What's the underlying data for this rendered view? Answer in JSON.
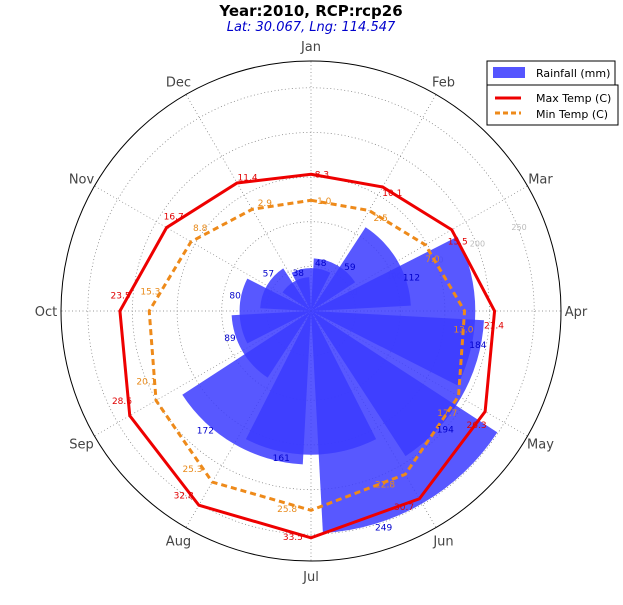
{
  "chart_data": {
    "type": "polar-bar-line",
    "title": "Year:2010, RCP:rcp26",
    "subtitle": "Lat: 30.067, Lng: 114.547",
    "months": [
      "Jan",
      "Feb",
      "Mar",
      "Apr",
      "May",
      "Jun",
      "Jul",
      "Aug",
      "Sep",
      "Oct",
      "Nov",
      "Dec"
    ],
    "radial_ticks": [
      "50",
      "100",
      "150",
      "200",
      "250"
    ],
    "radial_max": 280,
    "series": [
      {
        "name": "Rainfall (mm)",
        "kind": "bar",
        "color": "#4444ff",
        "values": [
          48,
          59,
          112,
          184,
          194,
          249,
          161,
          172,
          89,
          80,
          57,
          38
        ],
        "labels": [
          "48",
          "59",
          "112",
          "184",
          "194",
          "249",
          "161",
          "172",
          "89",
          "80",
          "57",
          "38"
        ]
      },
      {
        "name": "Max Temp (C)",
        "kind": "line",
        "color": "#ee0000",
        "values": [
          8.3,
          10.1,
          15.5,
          21.4,
          26.3,
          30.7,
          33.5,
          32.8,
          28.6,
          23.5,
          16.7,
          11.4
        ],
        "labels": [
          "8.3",
          "10.1",
          "15.5",
          "21.4",
          "26.3",
          "30.7",
          "33.5",
          "32.8",
          "28.6",
          "23.5",
          "16.7",
          "11.4"
        ]
      },
      {
        "name": "Min Temp (C)",
        "kind": "line",
        "style": "dashed",
        "color": "#ee8a1a",
        "values": [
          1.0,
          2.5,
          7.0,
          13.0,
          17.7,
          22.8,
          25.8,
          25.3,
          20.1,
          15.3,
          8.8,
          2.9
        ],
        "labels": [
          "1.0",
          "2.5",
          "7.0",
          "13.0",
          "17.7",
          "22.8",
          "25.8",
          "25.3",
          "20.1",
          "15.3",
          "8.8",
          "2.9"
        ]
      }
    ],
    "legend": {
      "placement": "top-right",
      "bar_entry": "Rainfall (mm)",
      "line_entries": [
        "Max Temp (C)",
        "Min Temp (C)"
      ]
    },
    "grid": true
  }
}
